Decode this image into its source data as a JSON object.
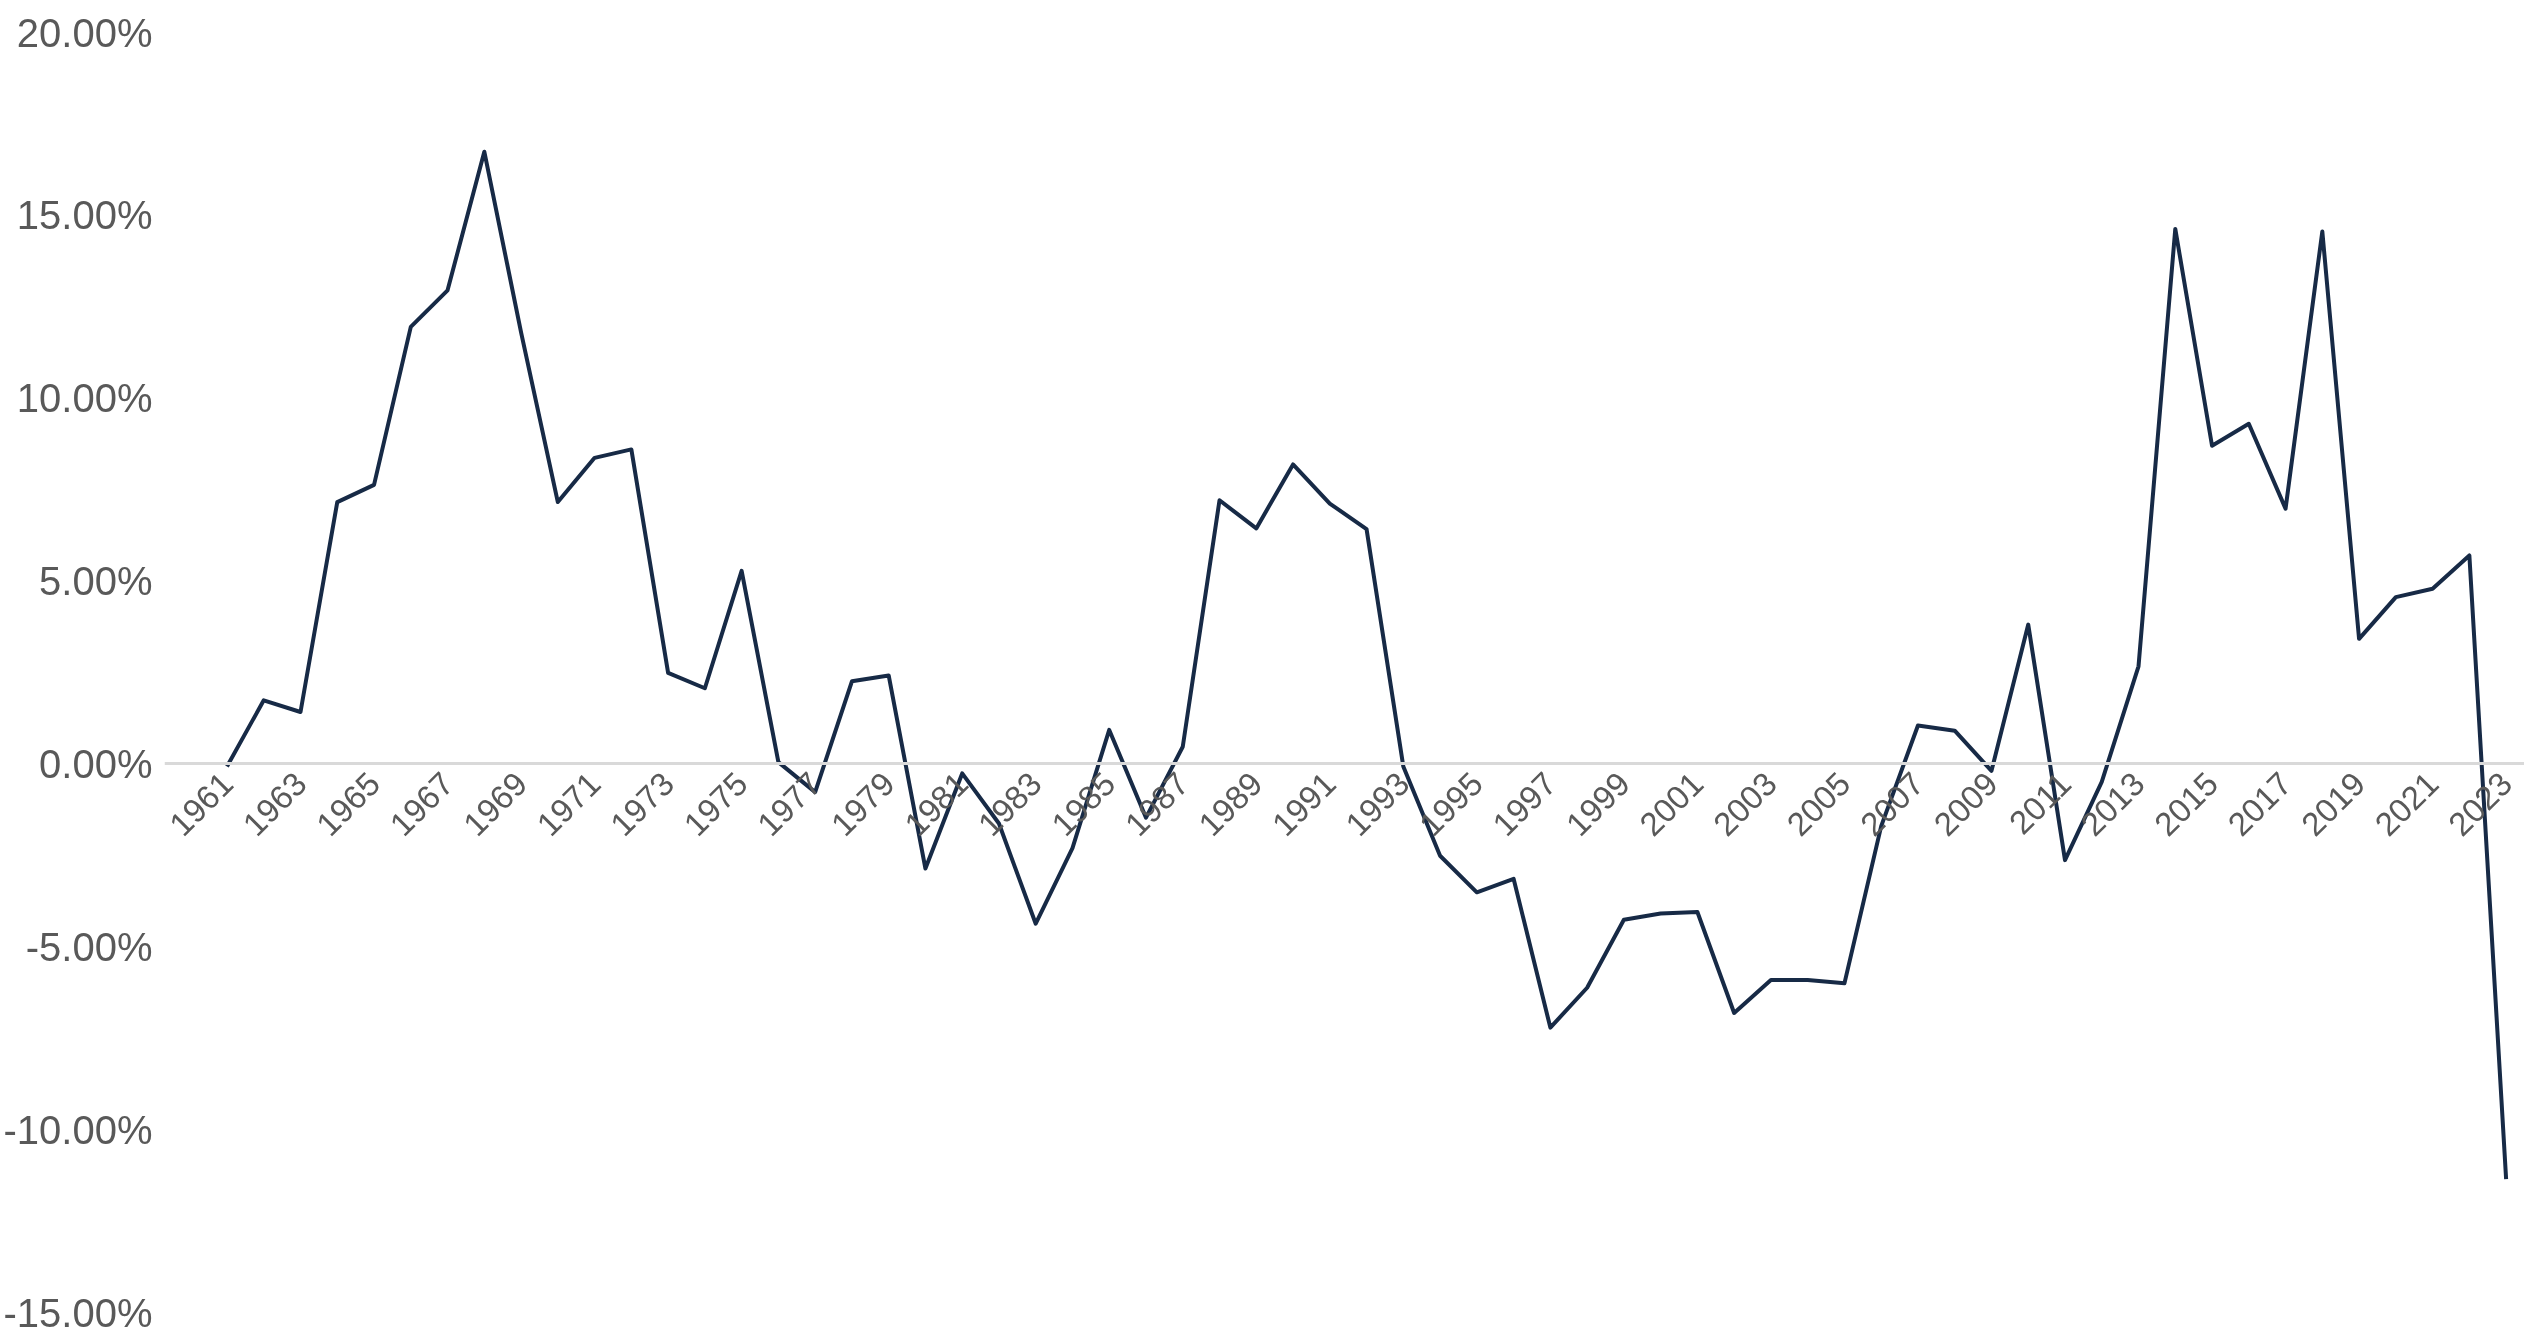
{
  "chart_data": {
    "type": "line",
    "categories": [
      "1961",
      null,
      "1963",
      null,
      "1965",
      null,
      "1967",
      null,
      "1969",
      null,
      "1971",
      null,
      "1973",
      null,
      "1975",
      null,
      "1977",
      null,
      "1979",
      null,
      "1981",
      null,
      "1983",
      null,
      "1985",
      null,
      "1987",
      null,
      "1989",
      null,
      "1991",
      null,
      "1993",
      null,
      "1995",
      null,
      "1997",
      null,
      "1999",
      null,
      "2001",
      null,
      "2003",
      null,
      "2005",
      null,
      "2007",
      null,
      "2009",
      null,
      "2011",
      null,
      "2013",
      null,
      "2015",
      null,
      "2017",
      null,
      "2019",
      null,
      "2021",
      null,
      "2023"
    ],
    "series": [
      {
        "color": "#172a46",
        "values": [
          -0.07,
          1.74,
          1.42,
          7.16,
          7.63,
          11.95,
          12.95,
          16.74,
          11.8,
          7.16,
          8.37,
          8.6,
          2.49,
          2.07,
          5.28,
          0.05,
          -0.77,
          2.26,
          2.42,
          -2.86,
          -0.26,
          -1.63,
          -4.37,
          -2.3,
          0.93,
          -1.47,
          0.47,
          7.21,
          6.44,
          8.19,
          7.12,
          6.42,
          -0.07,
          -2.51,
          -3.51,
          -3.14,
          -7.21,
          -6.12,
          -4.26,
          -4.09,
          -4.05,
          -6.81,
          -5.91,
          -5.91,
          -6.0,
          -1.7,
          1.05,
          0.91,
          -0.19,
          3.81,
          -2.63,
          -0.49,
          2.67,
          14.63,
          8.7,
          9.3,
          6.98,
          14.56,
          3.42,
          4.56,
          4.79,
          5.7,
          -11.35
        ]
      }
    ],
    "ylim": [
      -15,
      20
    ],
    "yticks": [
      {
        "value": -15,
        "label": "-15.00%"
      },
      {
        "value": -10,
        "label": "-10.00%"
      },
      {
        "value": -5,
        "label": "-5.00%"
      },
      {
        "value": 0,
        "label": "0.00%"
      },
      {
        "value": 5,
        "label": "5.00%"
      },
      {
        "value": 10,
        "label": "10.00%"
      },
      {
        "value": 15,
        "label": "15.00%"
      },
      {
        "value": 20,
        "label": "20.00%"
      }
    ],
    "grid": false
  }
}
